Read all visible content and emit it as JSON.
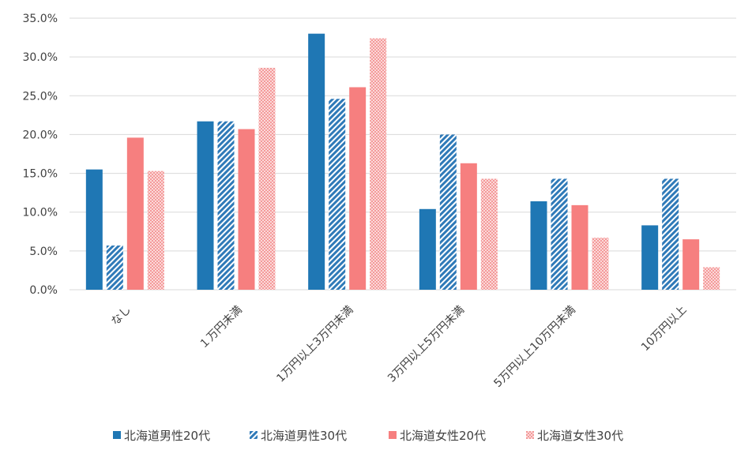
{
  "chart_data": {
    "type": "bar",
    "categories": [
      "なし",
      "１万円未満",
      "1万円以上3万円未満",
      "3万円以上5万円未満",
      "5万円以上10万円未満",
      "10万円以上"
    ],
    "series": [
      {
        "name": "北海道男性20代",
        "values": [
          15.5,
          21.7,
          33.0,
          10.4,
          11.4,
          8.3
        ],
        "color": "#1F77B4",
        "pattern": "solid"
      },
      {
        "name": "北海道男性30代",
        "values": [
          5.7,
          21.7,
          24.6,
          20.0,
          14.3,
          14.3
        ],
        "color": "#2F7AB8",
        "pattern": "diagonal-stripes"
      },
      {
        "name": "北海道女性20代",
        "values": [
          19.6,
          20.7,
          26.1,
          16.3,
          10.9,
          6.5
        ],
        "color": "#F67F7F",
        "pattern": "solid"
      },
      {
        "name": "北海道女性30代",
        "values": [
          15.3,
          28.6,
          32.4,
          14.3,
          6.7,
          2.9
        ],
        "color": "#F7A8A8",
        "pattern": "dotted"
      }
    ],
    "yticks": [
      "0.0%",
      "5.0%",
      "10.0%",
      "15.0%",
      "20.0%",
      "25.0%",
      "30.0%",
      "35.0%"
    ],
    "ylim": [
      0,
      35
    ],
    "grid": true,
    "legend_position": "bottom"
  }
}
